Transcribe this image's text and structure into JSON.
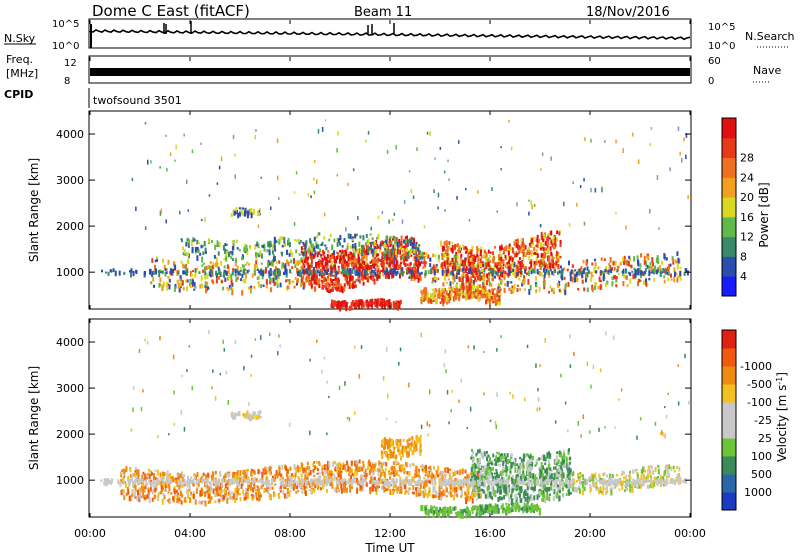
{
  "header": {
    "station": "Dome C East (fitACF)",
    "beam": "Beam 11",
    "date": "18/Nov/2016"
  },
  "strips": {
    "nsky_label": "N.Sky",
    "nsky_ticks": [
      "10^5",
      "10^0"
    ],
    "nsearch_label": "N.Search",
    "nsearch_ticks": [
      "10^5",
      "10^0"
    ],
    "freq_label_1": "Freq.",
    "freq_label_2": "[MHz]",
    "freq_ticks": [
      "12",
      "8"
    ],
    "nave_label": "Nave",
    "nave_ticks": [
      "60",
      "0"
    ],
    "cpid_label": "CPID",
    "cpid_value": "twofsound 3501"
  },
  "chart_data": [
    {
      "type": "heatmap",
      "name": "power",
      "ylabel": "Slant Range [km]",
      "y_ticks": [
        1000,
        2000,
        3000,
        4000
      ],
      "ylim": [
        200,
        4500
      ],
      "colorbar_label": "Power [dB]",
      "colorbar_ticks": [
        "4",
        "8",
        "12",
        "16",
        "20",
        "24",
        "28"
      ],
      "colorbar_colors": [
        "#1a1aff",
        "#2a4db0",
        "#3a8a6a",
        "#5fba4a",
        "#d8d820",
        "#f2a020",
        "#f07020",
        "#e83a1a",
        "#e01010"
      ]
    },
    {
      "type": "heatmap",
      "name": "velocity",
      "ylabel": "Slant Range [km]",
      "y_ticks": [
        1000,
        2000,
        3000,
        4000
      ],
      "ylim": [
        200,
        4500
      ],
      "colorbar_label": "Velocity [m s",
      "colorbar_label_sup": "-1",
      "colorbar_label_end": "]",
      "colorbar_ticks": [
        "1000",
        "500",
        "100",
        "25",
        "-25",
        "-100",
        "-500",
        "-1000"
      ],
      "colorbar_colors": [
        "#1a3ac0",
        "#2a66a8",
        "#3a8a5a",
        "#6cc43a",
        "#c8c8c8",
        "#c8c8c8",
        "#f2c020",
        "#f08a10",
        "#f05a10",
        "#e02010"
      ]
    }
  ],
  "x_axis": {
    "label": "Time UT",
    "ticks": [
      "00:00",
      "04:00",
      "08:00",
      "12:00",
      "16:00",
      "20:00",
      "00:00"
    ]
  }
}
